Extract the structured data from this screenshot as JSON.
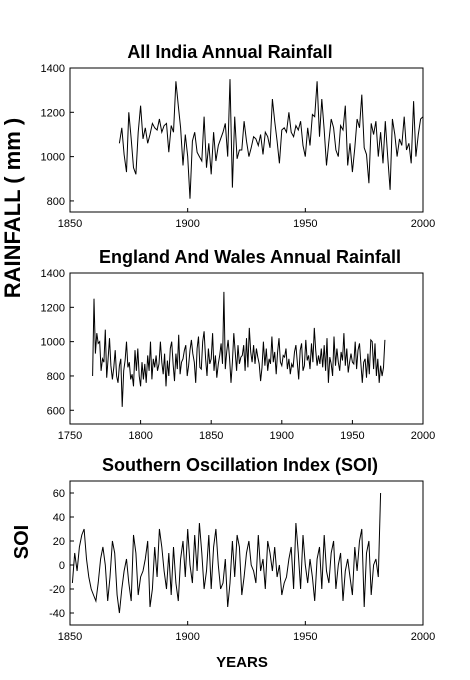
{
  "figure": {
    "ylabel_shared": "RAINFALL  ( mm )",
    "xlabel_shared": "YEARS"
  },
  "chart_data": [
    {
      "type": "line",
      "title": "All India Annual Rainfall",
      "xlabel": "",
      "ylabel": "RAINFALL  ( mm )",
      "xlim": [
        1850,
        2000
      ],
      "ylim": [
        750,
        1400
      ],
      "xticks": [
        1850,
        1900,
        1950,
        2000
      ],
      "yticks": [
        800,
        1000,
        1200,
        1400
      ],
      "grid": false,
      "series": [
        {
          "color": "#000000",
          "x_start": 1871,
          "values": [
            1060,
            1130,
            1010,
            930,
            1200,
            1080,
            950,
            920,
            1110,
            1230,
            1080,
            1130,
            1060,
            1100,
            1150,
            1130,
            1120,
            1170,
            1110,
            1140,
            1150,
            1020,
            1140,
            1110,
            1340,
            1230,
            1130,
            960,
            1100,
            1000,
            810,
            1070,
            1110,
            1020,
            1000,
            980,
            1180,
            950,
            1060,
            920,
            1110,
            980,
            1050,
            1080,
            1110,
            1150,
            1000,
            1350,
            860,
            1180,
            990,
            1030,
            1030,
            1160,
            1070,
            1000,
            1040,
            1090,
            1080,
            1050,
            1100,
            1010,
            1110,
            1090,
            1040,
            1260,
            1160,
            1070,
            970,
            1120,
            1130,
            1110,
            1200,
            1110,
            1090,
            1140,
            1120,
            1160,
            1050,
            1000,
            1130,
            1050,
            1190,
            1180,
            1340,
            1090,
            1260,
            1120,
            960,
            1070,
            1170,
            1130,
            1030,
            1000,
            1140,
            1120,
            1230,
            960,
            1060,
            930,
            1040,
            1170,
            1130,
            1280,
            1040,
            1010,
            880,
            1150,
            1100,
            1160,
            1000,
            1110,
            970,
            1160,
            1000,
            850,
            1170,
            1100,
            1000,
            1080,
            1050,
            1180,
            1030,
            1060,
            970,
            1250,
            1000,
            1100,
            1170,
            1180
          ]
        }
      ]
    },
    {
      "type": "line",
      "title": "England And Wales Annual Rainfall",
      "xlabel": "",
      "ylabel": "RAINFALL  ( mm )",
      "xlim": [
        1750,
        2000
      ],
      "ylim": [
        520,
        1400
      ],
      "xticks": [
        1750,
        1800,
        1850,
        1900,
        1950,
        2000
      ],
      "yticks": [
        600,
        800,
        1000,
        1200,
        1400
      ],
      "grid": false,
      "series": [
        {
          "color": "#000000",
          "x_start": 1766,
          "values": [
            800,
            1250,
            930,
            1050,
            990,
            1000,
            830,
            900,
            880,
            1070,
            790,
            900,
            1020,
            860,
            780,
            850,
            950,
            800,
            760,
            860,
            900,
            620,
            830,
            890,
            1000,
            850,
            880,
            780,
            810,
            740,
            950,
            830,
            960,
            800,
            740,
            880,
            780,
            870,
            760,
            920,
            830,
            1000,
            780,
            900,
            850,
            920,
            830,
            870,
            1000,
            880,
            810,
            930,
            740,
            890,
            800,
            960,
            1000,
            870,
            770,
            930,
            840,
            1040,
            810,
            880,
            900,
            950,
            980,
            800,
            860,
            950,
            1010,
            930,
            880,
            760,
            960,
            1030,
            850,
            840,
            1000,
            1060,
            900,
            800,
            960,
            870,
            900,
            1050,
            830,
            920,
            790,
            870,
            920,
            990,
            870,
            1290,
            840,
            940,
            1010,
            900,
            760,
            880,
            1050,
            940,
            830,
            980,
            870,
            910,
            920,
            980,
            830,
            1020,
            850,
            1080,
            940,
            880,
            980,
            870,
            960,
            910,
            870,
            770,
            850,
            1000,
            860,
            960,
            830,
            900,
            870,
            1030,
            880,
            940,
            810,
            940,
            1020,
            880,
            860,
            920,
            910,
            960,
            840,
            900,
            810,
            870,
            850,
            940,
            980,
            880,
            780,
            950,
            990,
            830,
            860,
            1010,
            890,
            920,
            840,
            990,
            880,
            1080,
            950,
            860,
            920,
            870,
            960,
            850,
            980,
            830,
            1020,
            760,
            910,
            870,
            800,
            1030,
            860,
            960,
            880,
            830,
            940,
            890,
            1050,
            860,
            960,
            820,
            880,
            930,
            880,
            870,
            1000,
            840,
            950,
            990,
            870,
            760,
            880,
            900,
            790,
            930,
            810,
            1010,
            1000,
            840,
            990,
            800,
            900,
            760,
            860,
            800,
            850,
            1010
          ]
        }
      ]
    },
    {
      "type": "line",
      "title": "Southern Oscillation Index  (SOI)",
      "xlabel": "YEARS",
      "ylabel": "SOI",
      "xlim": [
        1850,
        2000
      ],
      "ylim": [
        -50,
        70
      ],
      "xticks": [
        1850,
        1900,
        1950,
        2000
      ],
      "yticks": [
        -40,
        -20,
        0,
        20,
        40,
        60
      ],
      "grid": false,
      "series": [
        {
          "color": "#000000",
          "x_start": 1851,
          "values": [
            -15,
            10,
            -5,
            15,
            25,
            30,
            5,
            -10,
            -20,
            -25,
            -30,
            -15,
            5,
            15,
            0,
            -30,
            -10,
            20,
            10,
            -25,
            -40,
            -20,
            -5,
            5,
            -15,
            -30,
            25,
            10,
            -25,
            -10,
            -5,
            5,
            20,
            -35,
            -20,
            15,
            -10,
            30,
            15,
            -5,
            -20,
            10,
            -25,
            15,
            -15,
            -30,
            5,
            20,
            -10,
            30,
            0,
            -15,
            25,
            -5,
            35,
            10,
            -20,
            -5,
            25,
            -20,
            15,
            30,
            0,
            -20,
            -15,
            5,
            -35,
            -15,
            20,
            -10,
            25,
            15,
            -25,
            -10,
            10,
            20,
            0,
            -5,
            -15,
            25,
            -5,
            5,
            -20,
            20,
            10,
            -5,
            15,
            -10,
            0,
            -25,
            -15,
            -10,
            5,
            15,
            -20,
            35,
            10,
            -20,
            25,
            0,
            -15,
            5,
            -10,
            -30,
            5,
            15,
            -20,
            25,
            -5,
            -15,
            10,
            20,
            -20,
            0,
            10,
            -30,
            -5,
            5,
            -10,
            -25,
            15,
            -5,
            20,
            30,
            -35,
            10,
            20,
            -25,
            0,
            5,
            -10,
            60
          ]
        }
      ]
    }
  ]
}
